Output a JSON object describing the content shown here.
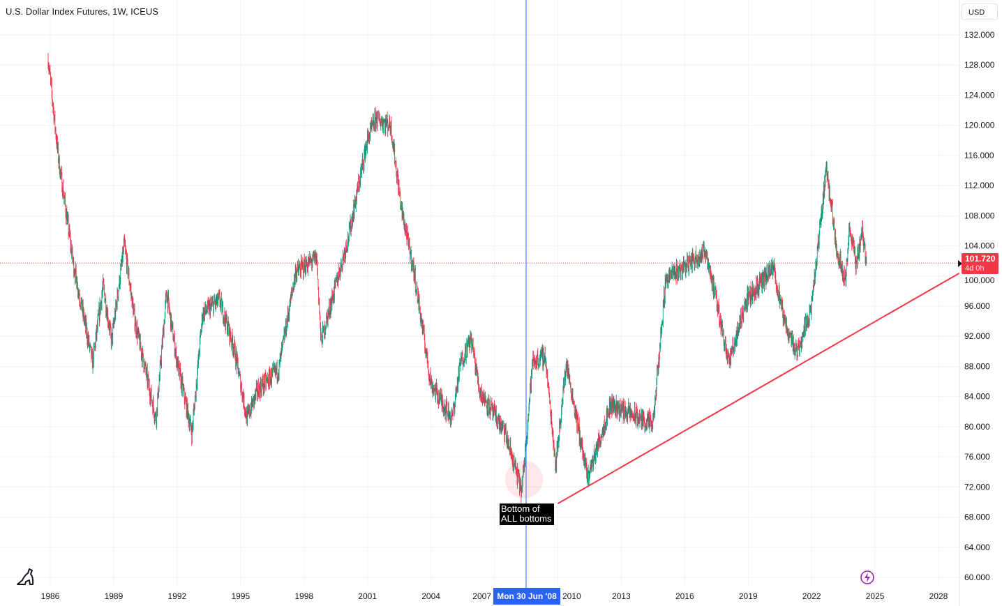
{
  "header": {
    "title": "U.S. Dollar Index Futures, 1W, ICEUS",
    "currency_button": "USD"
  },
  "price_tag": {
    "price": "101.720",
    "countdown": "4d 0h"
  },
  "annotation": {
    "line1": "Bottom of",
    "line2": "ALL bottoms"
  },
  "crosshair": {
    "date_label": "Mon 30 Jun '08",
    "year": 2008.5
  },
  "colors": {
    "up": "#089981",
    "down": "#f23645",
    "trendline": "#f23645",
    "crosshair": "#2962ff"
  },
  "icons": {
    "logo": "tradingview-dino-icon",
    "replay": "lightning-icon"
  },
  "chart_data": {
    "type": "candlestick",
    "title": "U.S. Dollar Index Futures, 1W, ICEUS",
    "ylim": [
      60,
      132
    ],
    "xlim": [
      1986,
      2028
    ],
    "y_ticks": [
      "132.000",
      "128.000",
      "124.000",
      "120.000",
      "116.000",
      "112.000",
      "108.000",
      "104.000",
      "100.000",
      "96.000",
      "92.000",
      "88.000",
      "84.000",
      "80.000",
      "76.000",
      "72.000",
      "68.000",
      "64.000",
      "60.000"
    ],
    "x_ticks": [
      "1986",
      "1989",
      "1992",
      "1995",
      "1998",
      "2001",
      "2004",
      "2007",
      "2010",
      "2013",
      "2016",
      "2019",
      "2022",
      "2025",
      "2028"
    ],
    "last_price": 101.72,
    "path_keypoints": [
      [
        1985.9,
        128.8
      ],
      [
        1986.4,
        115.3
      ],
      [
        1987.1,
        101.5
      ],
      [
        1988,
        88.5
      ],
      [
        1988.5,
        98.7
      ],
      [
        1988.9,
        91.3
      ],
      [
        1989.5,
        104.2
      ],
      [
        1990,
        94
      ],
      [
        1991,
        81
      ],
      [
        1991.5,
        97.8
      ],
      [
        1992,
        88.5
      ],
      [
        1992.7,
        79.2
      ],
      [
        1993.2,
        95
      ],
      [
        1994,
        96.8
      ],
      [
        1994.7,
        90.4
      ],
      [
        1995.3,
        81.1
      ],
      [
        1995.8,
        84.8
      ],
      [
        1996.8,
        87.6
      ],
      [
        1997.6,
        100.5
      ],
      [
        1998.6,
        102.4
      ],
      [
        1998.8,
        91.3
      ],
      [
        2000.1,
        105.2
      ],
      [
        2001,
        118.1
      ],
      [
        2001.4,
        120.9
      ],
      [
        2002.1,
        120
      ],
      [
        2002.6,
        108.9
      ],
      [
        2003.2,
        100.5
      ],
      [
        2004,
        85.7
      ],
      [
        2005,
        81.1
      ],
      [
        2005.4,
        88.5
      ],
      [
        2005.9,
        91.7
      ],
      [
        2006.3,
        84.8
      ],
      [
        2007.5,
        79.2
      ],
      [
        2008.3,
        71.4
      ],
      [
        2008.8,
        88.5
      ],
      [
        2009.4,
        89.4
      ],
      [
        2009.9,
        75
      ],
      [
        2010.4,
        88.5
      ],
      [
        2011.4,
        73.2
      ],
      [
        2012.5,
        83
      ],
      [
        2014.5,
        80.2
      ],
      [
        2015.1,
        99.6
      ],
      [
        2017,
        103.3
      ],
      [
        2018.1,
        88.5
      ],
      [
        2018.9,
        96.8
      ],
      [
        2020.2,
        101
      ],
      [
        2020.7,
        94
      ],
      [
        2021.3,
        89.9
      ],
      [
        2022,
        96
      ],
      [
        2022.7,
        114.4
      ],
      [
        2023.2,
        103.3
      ],
      [
        2023.6,
        99.6
      ],
      [
        2023.8,
        106.5
      ],
      [
        2024.1,
        101.5
      ],
      [
        2024.4,
        106
      ],
      [
        2024.6,
        101.7
      ]
    ],
    "trendline": [
      [
        2010.0,
        69.8
      ],
      [
        2029.0,
        100.4
      ]
    ],
    "highlight_circle": [
      2008.4,
      73
    ]
  }
}
